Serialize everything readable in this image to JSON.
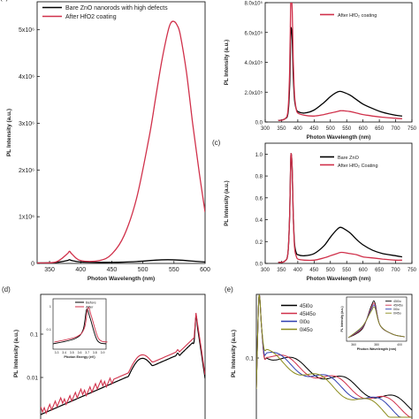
{
  "chart_data": [
    {
      "panel": "",
      "type": "line",
      "xlabel": "Photon Wavelength (nm)",
      "ylabel": "PL Intensity (a.u.)",
      "xlim": [
        330,
        600
      ],
      "ylim": [
        0,
        5600000
      ],
      "xticks": [
        350,
        400,
        450,
        500,
        550,
        600
      ],
      "yticks": [
        0,
        1000000,
        2000000,
        3000000,
        4000000,
        5000000
      ],
      "ytick_labels": [
        "0",
        "1x10⁶",
        "2x10⁶",
        "3x10⁶",
        "4x10⁶",
        "5x10⁶"
      ],
      "legend_position": "top-left",
      "series": [
        {
          "name": "Bare ZnO nanorods with high defects",
          "color": "#000000",
          "x": [
            330,
            360,
            378,
            382,
            386,
            400,
            430,
            460,
            490,
            520,
            540,
            560,
            580,
            600
          ],
          "y": [
            10000,
            20000,
            60000,
            80000,
            60000,
            30000,
            22000,
            25000,
            40000,
            70000,
            80000,
            70000,
            50000,
            30000
          ]
        },
        {
          "name": "After HfO2 coating",
          "color": "#d0304a",
          "x": [
            330,
            360,
            378,
            382,
            386,
            400,
            430,
            450,
            470,
            490,
            510,
            520,
            530,
            540,
            545,
            550,
            555,
            560,
            570,
            580,
            590,
            600
          ],
          "y": [
            10000,
            30000,
            200000,
            260000,
            200000,
            60000,
            60000,
            200000,
            600000,
            1400000,
            2700000,
            3500000,
            4300000,
            4950000,
            5150000,
            5180000,
            5100000,
            4900000,
            4100000,
            3000000,
            2000000,
            1100000
          ]
        }
      ]
    },
    {
      "panel": "",
      "type": "line",
      "xlabel": "Photon Wavelength (nm)",
      "ylabel": "PL Intensity (a.u.)",
      "xlim": [
        300,
        750
      ],
      "ylim": [
        0,
        8
      ],
      "xticks": [
        300,
        350,
        400,
        450,
        500,
        550,
        600,
        650,
        700,
        750
      ],
      "yticks": [
        0,
        2,
        4,
        6,
        8
      ],
      "ytick_labels": [
        "0.0",
        "2.0x10⁵",
        "4.0x10⁵",
        "6.0x10⁵",
        "8.0x10⁵"
      ],
      "legend_position": "top-right",
      "series": [
        {
          "name": "",
          "color": "#000000",
          "x": [
            340,
            360,
            370,
            375,
            378,
            380,
            383,
            386,
            390,
            395,
            400,
            420,
            450,
            480,
            500,
            520,
            530,
            540,
            560,
            580,
            600,
            630,
            660,
            700,
            720
          ],
          "y": [
            0.1,
            0.2,
            0.6,
            2.5,
            5.8,
            6.3,
            5.5,
            3.2,
            1.5,
            0.9,
            0.7,
            0.6,
            0.8,
            1.3,
            1.7,
            2.0,
            2.05,
            2.0,
            1.8,
            1.5,
            1.2,
            0.9,
            0.65,
            0.45,
            0.4
          ]
        },
        {
          "name": "After HfO₂ coating",
          "color": "#d0304a",
          "x": [
            340,
            360,
            370,
            375,
            378,
            380,
            383,
            386,
            390,
            395,
            400,
            420,
            450,
            480,
            500,
            520,
            530,
            540,
            560,
            580,
            600,
            630,
            660,
            700,
            720
          ],
          "y": [
            0.1,
            0.2,
            0.8,
            3.5,
            7.8,
            8.5,
            7.4,
            4.2,
            1.8,
            0.9,
            0.6,
            0.45,
            0.4,
            0.5,
            0.6,
            0.7,
            0.75,
            0.75,
            0.7,
            0.6,
            0.5,
            0.4,
            0.32,
            0.25,
            0.22
          ]
        }
      ]
    },
    {
      "panel": "(c)",
      "type": "line",
      "xlabel": "Photon Wavelength (nm)",
      "ylabel": "PL Intensity (a.u.)",
      "xlim": [
        300,
        750
      ],
      "ylim": [
        0,
        1.1
      ],
      "xticks": [
        300,
        350,
        400,
        450,
        500,
        550,
        600,
        650,
        700,
        750
      ],
      "yticks": [
        0,
        0.2,
        0.4,
        0.6,
        0.8,
        1.0
      ],
      "ytick_labels": [
        "0.0",
        "0.2",
        "0.4",
        "0.6",
        "0.8",
        "1.0"
      ],
      "legend_position": "top-right",
      "series": [
        {
          "name": "Bare ZnO",
          "color": "#000000",
          "x": [
            340,
            360,
            370,
            375,
            378,
            380,
            383,
            386,
            390,
            395,
            400,
            420,
            450,
            480,
            500,
            520,
            530,
            540,
            560,
            580,
            600,
            630,
            660,
            700,
            720
          ],
          "y": [
            0.01,
            0.02,
            0.1,
            0.45,
            0.92,
            1.0,
            0.85,
            0.45,
            0.18,
            0.1,
            0.08,
            0.07,
            0.09,
            0.16,
            0.24,
            0.31,
            0.33,
            0.32,
            0.28,
            0.22,
            0.17,
            0.12,
            0.09,
            0.07,
            0.06
          ]
        },
        {
          "name": "After HfO₂ Coating",
          "color": "#d0304a",
          "x": [
            340,
            360,
            370,
            375,
            378,
            380,
            383,
            386,
            390,
            395,
            400,
            420,
            450,
            480,
            500,
            520,
            530,
            540,
            560,
            580,
            600,
            630,
            660,
            700,
            720
          ],
          "y": [
            0.01,
            0.02,
            0.1,
            0.45,
            0.92,
            1.0,
            0.85,
            0.45,
            0.15,
            0.07,
            0.04,
            0.03,
            0.03,
            0.05,
            0.07,
            0.09,
            0.1,
            0.1,
            0.09,
            0.08,
            0.06,
            0.05,
            0.04,
            0.03,
            0.03
          ]
        }
      ]
    },
    {
      "panel": "(d)",
      "type": "line",
      "ylabel": "PL Intensity (a.u.)",
      "yscale": "log",
      "ytick_labels": [
        "0.1",
        "0.01"
      ],
      "legend_position": "inset top-left",
      "series": [
        {
          "name": "Before",
          "color": "#000000"
        },
        {
          "name": "After",
          "color": "#d0304a"
        }
      ],
      "inset": {
        "xlabel": "Photon Energy (eV)",
        "xtick_labels": [
          "3.3",
          "3.4",
          "3.5",
          "3.6",
          "3.7",
          "3.8",
          "3.9"
        ],
        "ytick_labels": [
          "1",
          "0.1"
        ],
        "legend": [
          "Before",
          "After"
        ]
      }
    },
    {
      "panel": "(e)",
      "type": "line",
      "ylabel": "PL Intensity (a.u.)",
      "yscale": "log",
      "ytick_labels": [
        "0.1"
      ],
      "legend_position": "top-left",
      "series": [
        {
          "name": "45l0o",
          "color": "#000000"
        },
        {
          "name": "45l45o",
          "color": "#d0304a"
        },
        {
          "name": "0l0o",
          "color": "#2f3fb0"
        },
        {
          "name": "0l45o",
          "color": "#8c8c1c"
        }
      ],
      "inset": {
        "xlabel": "Photon Wavelength (nm)",
        "ylabel": "PL Intensity (a.u.)",
        "xtick_labels": [
          "360",
          "380",
          "400"
        ],
        "legend": [
          "45l0o",
          "45l45o",
          "0l0o",
          "0l45o"
        ]
      }
    }
  ]
}
